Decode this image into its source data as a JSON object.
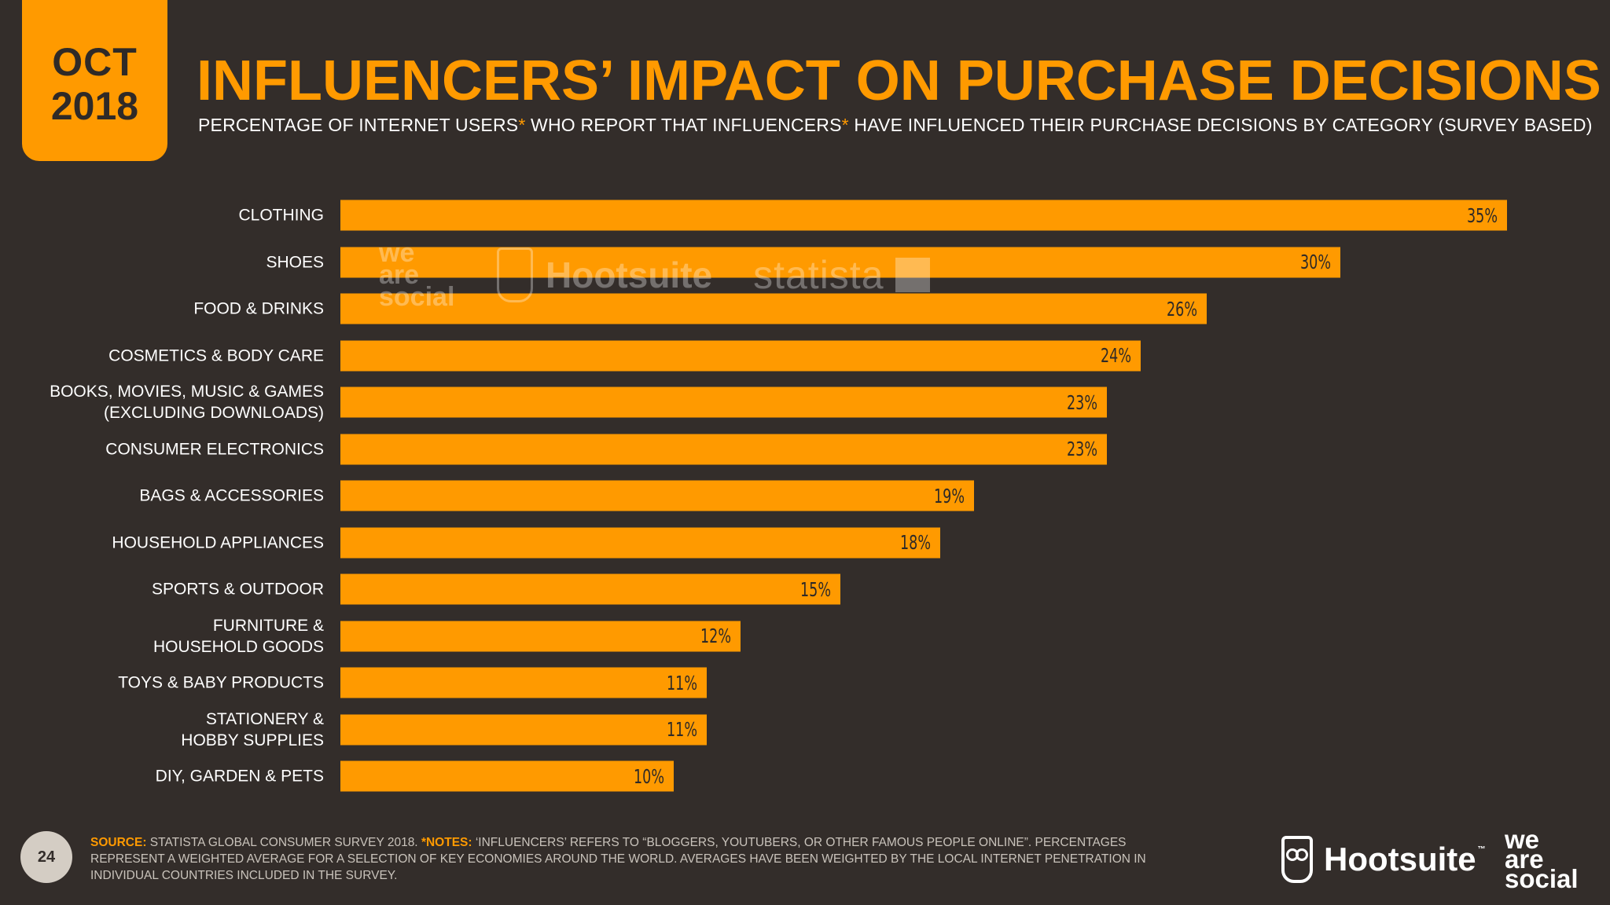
{
  "badge": {
    "month": "OCT",
    "year": "2018"
  },
  "header": {
    "title": "INFLUENCERS’ IMPACT ON PURCHASE DECISIONS",
    "subtitle_part1": "PERCENTAGE OF INTERNET USERS",
    "subtitle_star1": "*",
    "subtitle_part2": " WHO REPORT THAT INFLUENCERS",
    "subtitle_star2": "*",
    "subtitle_part3": " HAVE INFLUENCED THEIR PURCHASE DECISIONS BY CATEGORY (SURVEY BASED)"
  },
  "chart_data": {
    "type": "bar",
    "orientation": "horizontal",
    "title": "INFLUENCERS’ IMPACT ON PURCHASE DECISIONS",
    "xlabel": "",
    "ylabel": "",
    "xlim": [
      0,
      35
    ],
    "grid": false,
    "legend": "none",
    "categories": [
      "CLOTHING",
      "SHOES",
      "FOOD & DRINKS",
      "COSMETICS & BODY CARE",
      "BOOKS, MOVIES, MUSIC & GAMES\n(EXCLUDING DOWNLOADS)",
      "CONSUMER ELECTRONICS",
      "BAGS & ACCESSORIES",
      "HOUSEHOLD APPLIANCES",
      "SPORTS & OUTDOOR",
      "FURNITURE &\nHOUSEHOLD GOODS",
      "TOYS & BABY PRODUCTS",
      "STATIONERY &\nHOBBY SUPPLIES",
      "DIY, GARDEN & PETS"
    ],
    "values": [
      35,
      30,
      26,
      24,
      23,
      23,
      19,
      18,
      15,
      12,
      11,
      11,
      10
    ],
    "value_labels": [
      "35%",
      "30%",
      "26%",
      "24%",
      "23%",
      "23%",
      "19%",
      "18%",
      "15%",
      "12%",
      "11%",
      "11%",
      "10%"
    ],
    "bar_color": "#ff9a00"
  },
  "watermark": {
    "was": "we\nare\nsocial",
    "hootsuite": "Hootsuite",
    "statista": "statista"
  },
  "footer": {
    "page_number": "24",
    "source_label": "SOURCE:",
    "source_text": " STATISTA GLOBAL CONSUMER SURVEY 2018. ",
    "notes_label": "*NOTES:",
    "notes_text": " ‘INFLUENCERS’ REFERS TO “BLOGGERS, YOUTUBERS, OR OTHER FAMOUS PEOPLE ONLINE”. PERCENTAGES REPRESENT A WEIGHTED AVERAGE FOR A SELECTION OF KEY ECONOMIES AROUND THE WORLD. AVERAGES HAVE BEEN WEIGHTED BY THE LOCAL INTERNET PENETRATION IN INDIVIDUAL COUNTRIES INCLUDED IN THE SURVEY."
  },
  "logos": {
    "hootsuite": "Hootsuite",
    "hootsuite_tm": "™",
    "we_are_social": "we\nare\nsocial"
  },
  "colors": {
    "background": "#332d2a",
    "accent": "#ff9a00",
    "text": "#ffffff"
  }
}
